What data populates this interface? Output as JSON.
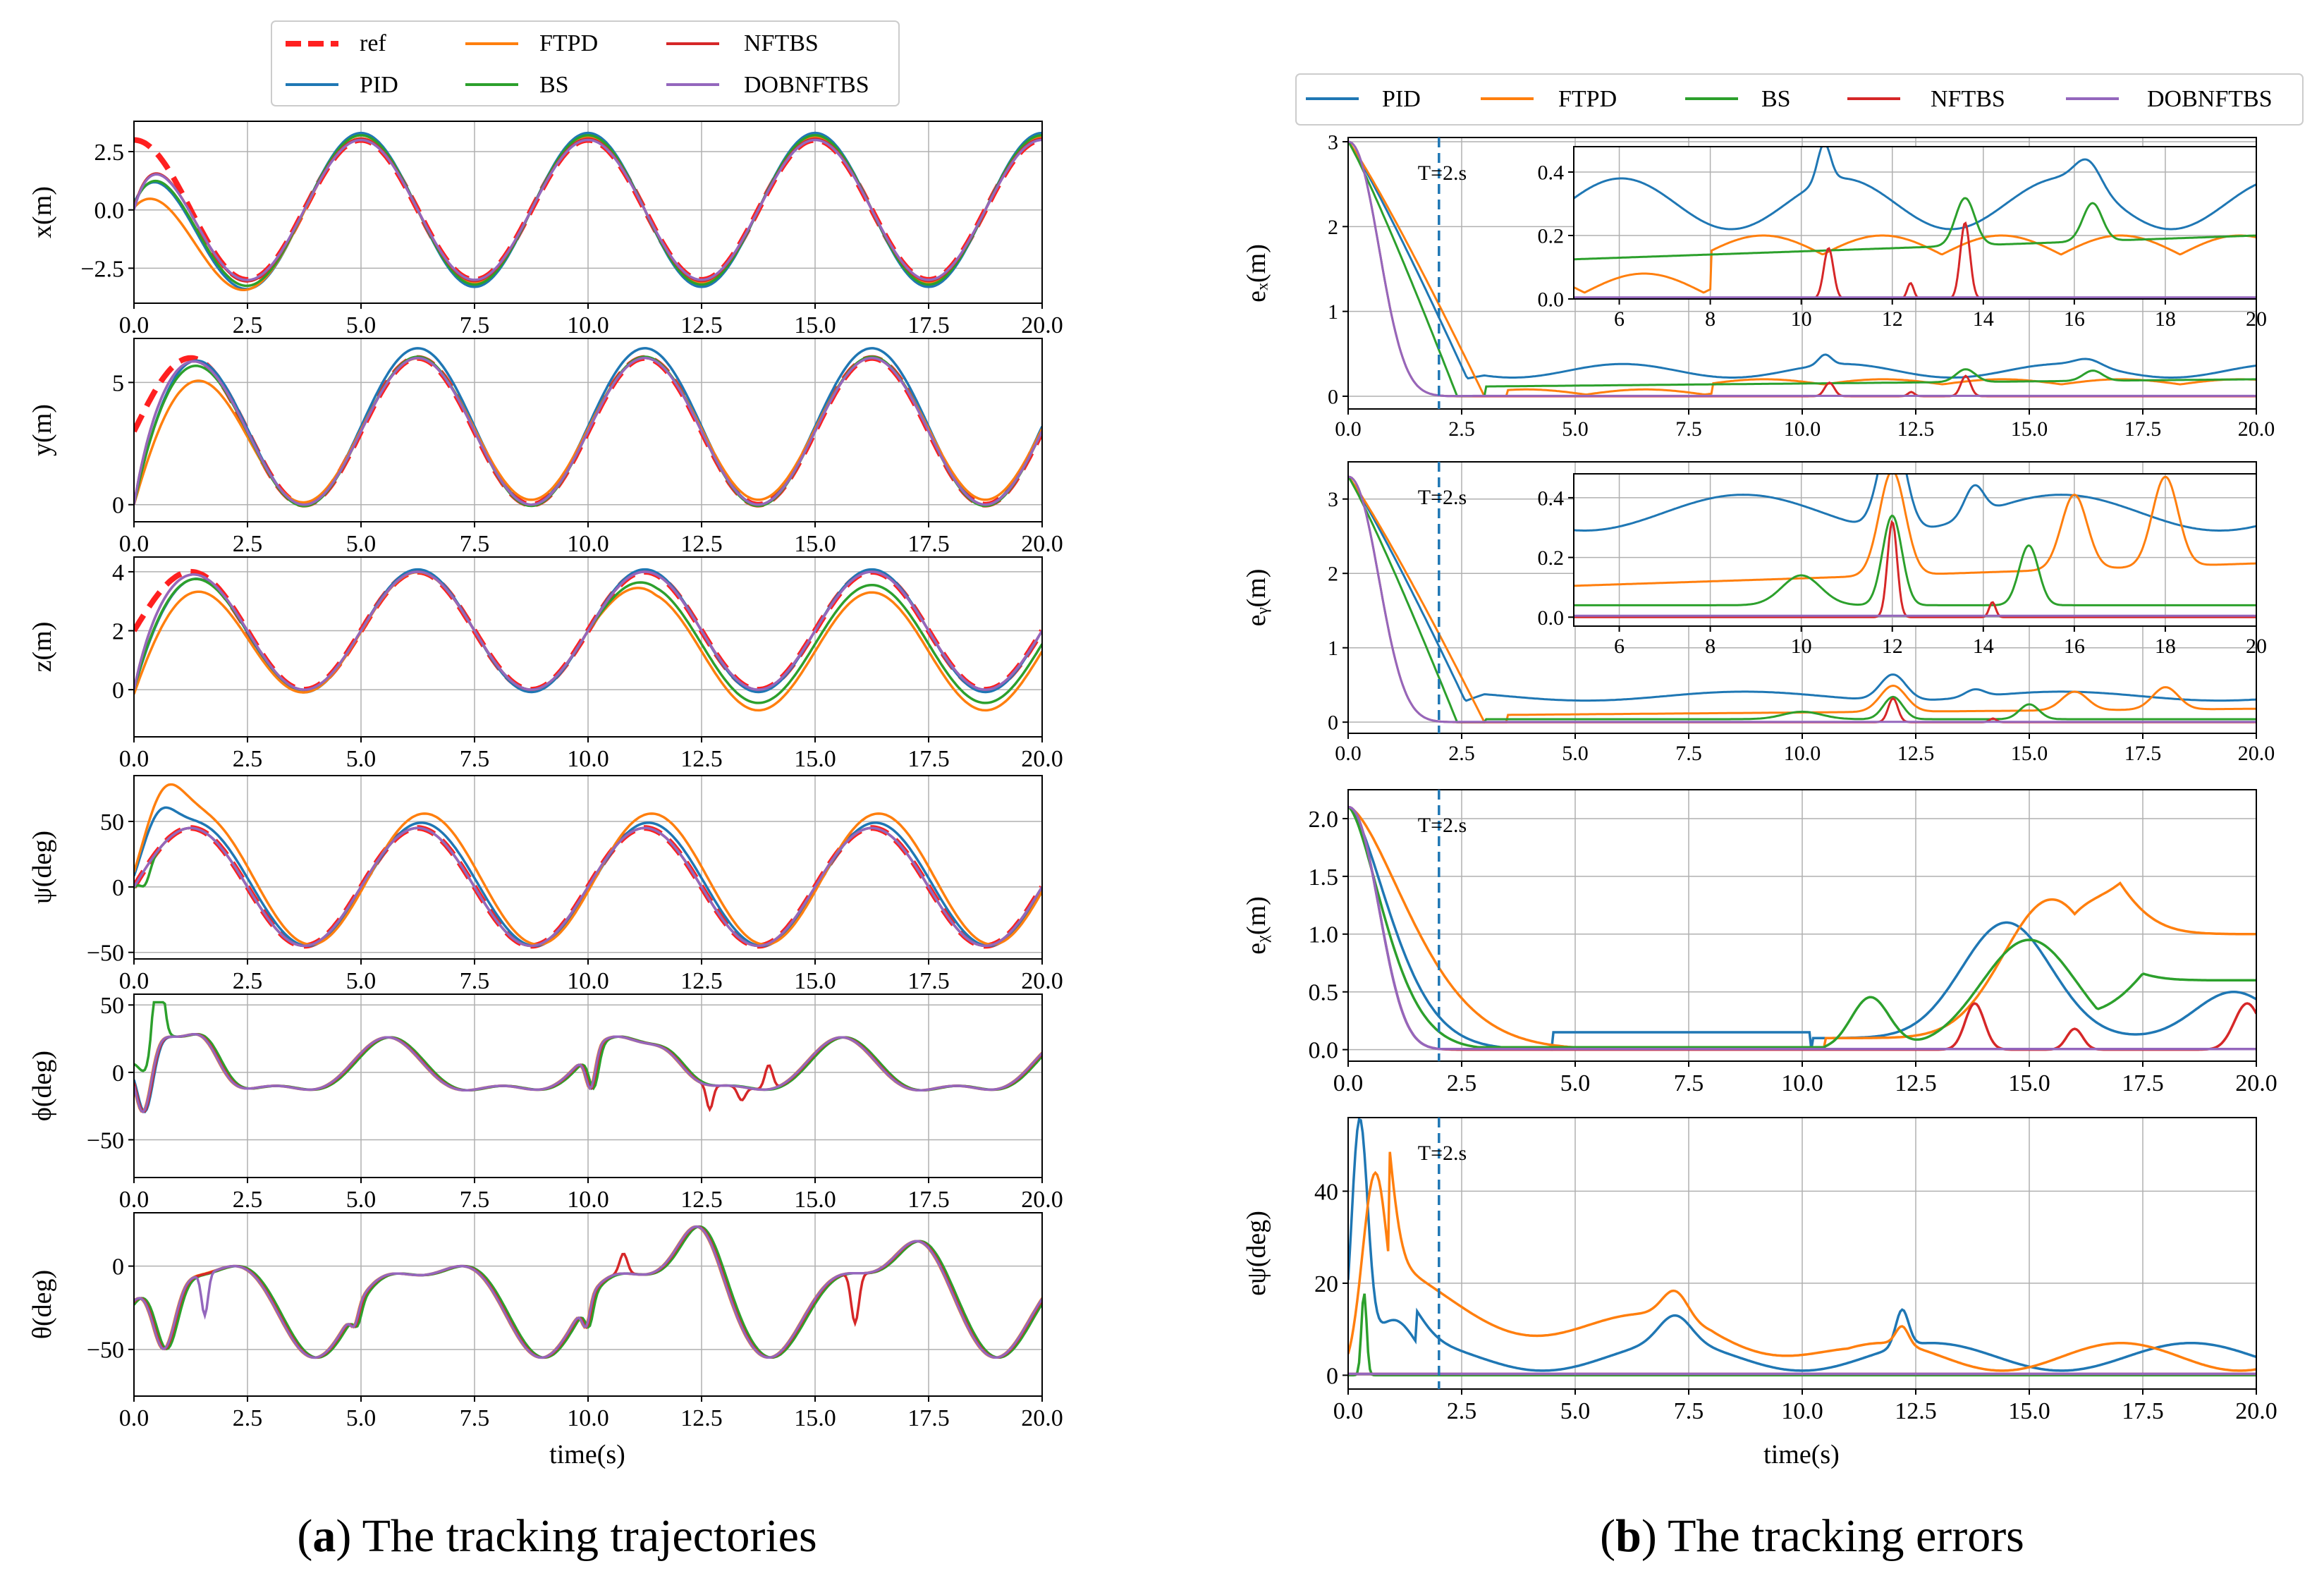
{
  "legend_left": [
    "ref",
    "PID",
    "FTPD",
    "BS",
    "NFTBS",
    "DOBNFTBS"
  ],
  "legend_right": [
    "PID",
    "FTPD",
    "BS",
    "NFTBS",
    "DOBNFTBS"
  ],
  "colors": {
    "ref": "#ff2020",
    "PID": "#1f77b4",
    "FTPD": "#ff7f0e",
    "BS": "#2ca02c",
    "NFTBS": "#d62728",
    "DOBNFTBS": "#9467bd",
    "marker": "#1f77b4"
  },
  "captions": {
    "left": {
      "label": "a",
      "text": " The tracking trajectories"
    },
    "right": {
      "label": "b",
      "text": " The tracking errors"
    }
  },
  "xlabel": "time(s)",
  "marker_label": "T=2.s",
  "chart_data": [
    {
      "id": "x",
      "type": "line",
      "title": "",
      "ylabel": "x(m)",
      "xlim": [
        0,
        20
      ],
      "ylim": [
        -4,
        3.8
      ],
      "yticks": [
        -2.5,
        0,
        2.5
      ],
      "ytick_labels": [
        "−2.5",
        "0.0",
        "2.5"
      ],
      "xticks": [
        0,
        2.5,
        5,
        7.5,
        10,
        12.5,
        15,
        17.5,
        20
      ],
      "xtick_labels": [
        "0.0",
        "2.5",
        "5.0",
        "7.5",
        "10.0",
        "12.5",
        "15.0",
        "17.5",
        "20.0"
      ],
      "grid": true,
      "series": [
        "ref",
        "PID",
        "FTPD",
        "BS",
        "NFTBS",
        "DOBNFTBS"
      ]
    },
    {
      "id": "y",
      "type": "line",
      "title": "",
      "ylabel": "y(m)",
      "xlim": [
        0,
        20
      ],
      "ylim": [
        -0.7,
        6.8
      ],
      "yticks": [
        0,
        5
      ],
      "ytick_labels": [
        "0",
        "5"
      ],
      "xticks": [
        0,
        2.5,
        5,
        7.5,
        10,
        12.5,
        15,
        17.5,
        20
      ],
      "xtick_labels": [
        "0.0",
        "2.5",
        "5.0",
        "7.5",
        "10.0",
        "12.5",
        "15.0",
        "17.5",
        "20.0"
      ],
      "grid": true,
      "series": [
        "ref",
        "PID",
        "FTPD",
        "BS",
        "NFTBS",
        "DOBNFTBS"
      ]
    },
    {
      "id": "z",
      "type": "line",
      "title": "",
      "ylabel": "z(m)",
      "xlim": [
        0,
        20
      ],
      "ylim": [
        -1.6,
        4.5
      ],
      "yticks": [
        0,
        2,
        4
      ],
      "ytick_labels": [
        "0",
        "2",
        "4"
      ],
      "xticks": [
        0,
        2.5,
        5,
        7.5,
        10,
        12.5,
        15,
        17.5,
        20
      ],
      "xtick_labels": [
        "0.0",
        "2.5",
        "5.0",
        "7.5",
        "10.0",
        "12.5",
        "15.0",
        "17.5",
        "20.0"
      ],
      "grid": true,
      "series": [
        "ref",
        "PID",
        "FTPD",
        "BS",
        "NFTBS",
        "DOBNFTBS"
      ]
    },
    {
      "id": "psi",
      "type": "line",
      "title": "",
      "ylabel": "ψ(deg)",
      "xlim": [
        0,
        20
      ],
      "ylim": [
        -55,
        85
      ],
      "yticks": [
        -50,
        0,
        50
      ],
      "ytick_labels": [
        "−50",
        "0",
        "50"
      ],
      "xticks": [
        0,
        2.5,
        5,
        7.5,
        10,
        12.5,
        15,
        17.5,
        20
      ],
      "xtick_labels": [
        "0.0",
        "2.5",
        "5.0",
        "7.5",
        "10.0",
        "12.5",
        "15.0",
        "17.5",
        "20.0"
      ],
      "grid": true,
      "series": [
        "ref",
        "PID",
        "FTPD",
        "BS",
        "NFTBS",
        "DOBNFTBS"
      ]
    },
    {
      "id": "phi",
      "type": "line",
      "title": "",
      "ylabel": "ϕ(deg)",
      "xlim": [
        0,
        20
      ],
      "ylim": [
        -78,
        58
      ],
      "yticks": [
        -50,
        0,
        50
      ],
      "ytick_labels": [
        "−50",
        "0",
        "50"
      ],
      "xticks": [
        0,
        2.5,
        5,
        7.5,
        10,
        12.5,
        15,
        17.5,
        20
      ],
      "xtick_labels": [
        "0.0",
        "2.5",
        "5.0",
        "7.5",
        "10.0",
        "12.5",
        "15.0",
        "17.5",
        "20.0"
      ],
      "grid": true,
      "series": [
        "PID",
        "FTPD",
        "BS",
        "NFTBS",
        "DOBNFTBS"
      ]
    },
    {
      "id": "theta",
      "type": "line",
      "title": "",
      "ylabel": "θ(deg)",
      "xlim": [
        0,
        20
      ],
      "ylim": [
        -78,
        32
      ],
      "yticks": [
        -50,
        0
      ],
      "ytick_labels": [
        "−50",
        "0"
      ],
      "xticks": [
        0,
        2.5,
        5,
        7.5,
        10,
        12.5,
        15,
        17.5,
        20
      ],
      "xtick_labels": [
        "0.0",
        "2.5",
        "5.0",
        "7.5",
        "10.0",
        "12.5",
        "15.0",
        "17.5",
        "20.0"
      ],
      "grid": true,
      "series": [
        "PID",
        "FTPD",
        "BS",
        "NFTBS",
        "DOBNFTBS"
      ]
    },
    {
      "id": "ex",
      "type": "line",
      "title": "",
      "ylabel": "eₓ(m)",
      "xlim": [
        0,
        20
      ],
      "ylim": [
        -0.15,
        3.05
      ],
      "yticks": [
        0,
        1,
        2,
        3
      ],
      "ytick_labels": [
        "0",
        "1",
        "2",
        "3"
      ],
      "xticks": [
        0,
        2.5,
        5,
        7.5,
        10,
        12.5,
        15,
        17.5,
        20
      ],
      "xtick_labels": [
        "0.0",
        "2.5",
        "5.0",
        "7.5",
        "10.0",
        "12.5",
        "15.0",
        "17.5",
        "20.0"
      ],
      "grid": true,
      "series": [
        "PID",
        "FTPD",
        "BS",
        "NFTBS",
        "DOBNFTBS"
      ],
      "marker_x": 2,
      "inset": {
        "xlim": [
          5,
          20
        ],
        "ylim": [
          0,
          0.48
        ],
        "xticks": [
          6,
          8,
          10,
          12,
          14,
          16,
          18,
          20
        ],
        "xtick_labels": [
          "6",
          "8",
          "10",
          "12",
          "14",
          "16",
          "18",
          "20"
        ],
        "yticks": [
          0,
          0.2,
          0.4
        ],
        "ytick_labels": [
          "0.0",
          "0.2",
          "0.4"
        ]
      }
    },
    {
      "id": "ey",
      "type": "line",
      "title": "",
      "ylabel": "eᵧ(m)",
      "xlim": [
        0,
        20
      ],
      "ylim": [
        -0.15,
        3.5
      ],
      "yticks": [
        0,
        1,
        2,
        3
      ],
      "ytick_labels": [
        "0",
        "1",
        "2",
        "3"
      ],
      "xticks": [
        0,
        2.5,
        5,
        7.5,
        10,
        12.5,
        15,
        17.5,
        20
      ],
      "xtick_labels": [
        "0.0",
        "2.5",
        "5.0",
        "7.5",
        "10.0",
        "12.5",
        "15.0",
        "17.5",
        "20.0"
      ],
      "grid": true,
      "series": [
        "PID",
        "FTPD",
        "BS",
        "NFTBS",
        "DOBNFTBS"
      ],
      "marker_x": 2,
      "inset": {
        "xlim": [
          5,
          20
        ],
        "ylim": [
          -0.03,
          0.48
        ],
        "xticks": [
          6,
          8,
          10,
          12,
          14,
          16,
          18,
          20
        ],
        "xtick_labels": [
          "6",
          "8",
          "10",
          "12",
          "14",
          "16",
          "18",
          "20"
        ],
        "yticks": [
          0,
          0.2,
          0.4
        ],
        "ytick_labels": [
          "0.0",
          "0.2",
          "0.4"
        ]
      }
    },
    {
      "id": "ez",
      "type": "line",
      "title": "",
      "ylabel": "eᵪ(m)",
      "xlim": [
        0,
        20
      ],
      "ylim": [
        -0.1,
        2.25
      ],
      "yticks": [
        0,
        0.5,
        1,
        1.5,
        2
      ],
      "ytick_labels": [
        "0.0",
        "0.5",
        "1.0",
        "1.5",
        "2.0"
      ],
      "xticks": [
        0,
        2.5,
        5,
        7.5,
        10,
        12.5,
        15,
        17.5,
        20
      ],
      "xtick_labels": [
        "0.0",
        "2.5",
        "5.0",
        "7.5",
        "10.0",
        "12.5",
        "15.0",
        "17.5",
        "20.0"
      ],
      "grid": true,
      "series": [
        "PID",
        "FTPD",
        "BS",
        "NFTBS",
        "DOBNFTBS"
      ],
      "marker_x": 2
    },
    {
      "id": "epsi",
      "type": "line",
      "title": "",
      "ylabel": "eψ(deg)",
      "xlim": [
        0,
        20
      ],
      "ylim": [
        -3,
        56
      ],
      "yticks": [
        0,
        20,
        40
      ],
      "ytick_labels": [
        "0",
        "20",
        "40"
      ],
      "xticks": [
        0,
        2.5,
        5,
        7.5,
        10,
        12.5,
        15,
        17.5,
        20
      ],
      "xtick_labels": [
        "0.0",
        "2.5",
        "5.0",
        "7.5",
        "10.0",
        "12.5",
        "15.0",
        "17.5",
        "20.0"
      ],
      "grid": true,
      "series": [
        "PID",
        "FTPD",
        "BS",
        "NFTBS",
        "DOBNFTBS"
      ],
      "marker_x": 2
    }
  ]
}
